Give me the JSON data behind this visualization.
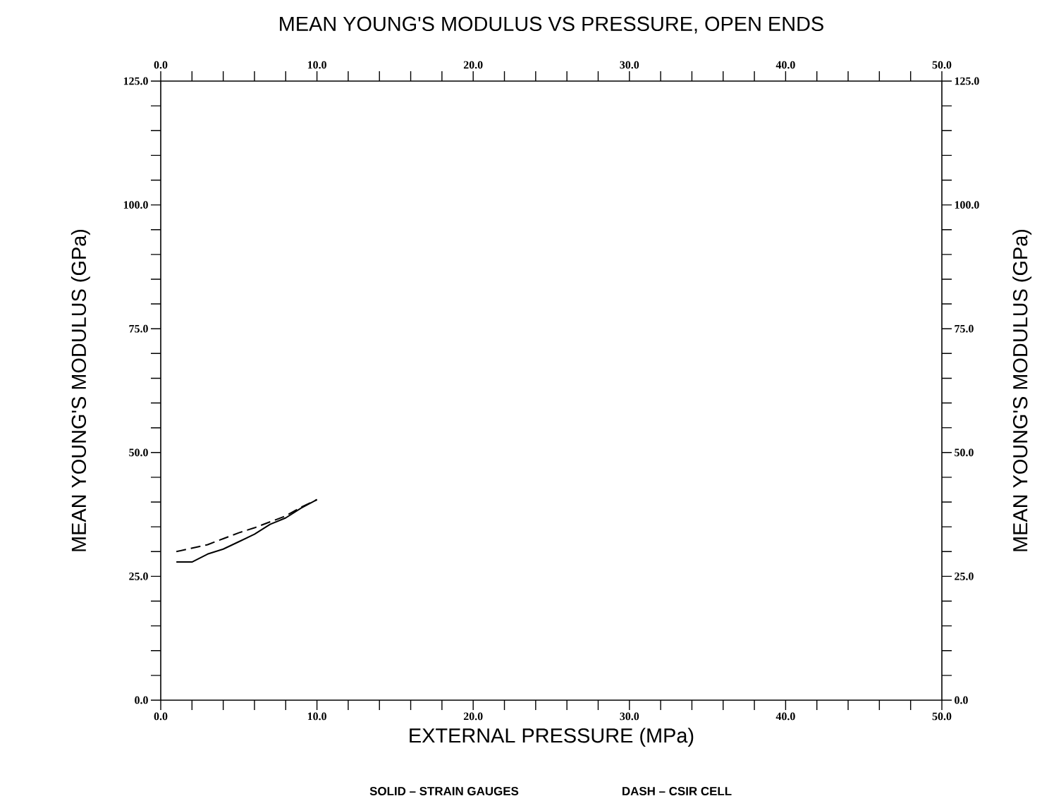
{
  "chart_data": {
    "type": "line",
    "title": "MEAN YOUNG'S MODULUS VS PRESSURE, OPEN ENDS",
    "xlabel": "EXTERNAL PRESSURE (MPa)",
    "ylabel": "MEAN YOUNG'S MODULUS (GPa)",
    "y2label": "MEAN YOUNG'S MODULUS (GPa)",
    "annotations": [
      "SOLID – STRAIN GAUGES",
      "DASH – CSIR CELL"
    ],
    "x": [
      1,
      2,
      3,
      4,
      5,
      6,
      7,
      8,
      9,
      10
    ],
    "series": [
      {
        "color": "#000000",
        "line_style": "solid",
        "values": [
          27.9,
          27.9,
          29.5,
          30.5,
          32.0,
          33.5,
          35.5,
          36.8,
          38.8,
          40.5
        ]
      },
      {
        "color": "#000000",
        "line_style": "dashed",
        "values": [
          30.0,
          30.7,
          31.4,
          32.6,
          33.8,
          34.8,
          36.0,
          37.2,
          39.0,
          40.5
        ]
      }
    ],
    "marker": "none",
    "xlim": [
      0,
      50
    ],
    "ylim": [
      0,
      125
    ],
    "x2lim": [
      0,
      50
    ],
    "y2lim": [
      0,
      125
    ],
    "xticks": [
      {
        "value": 0,
        "label": "0.0"
      },
      {
        "value": 2,
        "label": null
      },
      {
        "value": 4,
        "label": null
      },
      {
        "value": 6,
        "label": null
      },
      {
        "value": 8,
        "label": null
      },
      {
        "value": 10,
        "label": "10.0"
      },
      {
        "value": 12,
        "label": null
      },
      {
        "value": 14,
        "label": null
      },
      {
        "value": 16,
        "label": null
      },
      {
        "value": 18,
        "label": null
      },
      {
        "value": 20,
        "label": "20.0"
      },
      {
        "value": 22,
        "label": null
      },
      {
        "value": 24,
        "label": null
      },
      {
        "value": 26,
        "label": null
      },
      {
        "value": 28,
        "label": null
      },
      {
        "value": 30,
        "label": "30.0"
      },
      {
        "value": 32,
        "label": null
      },
      {
        "value": 34,
        "label": null
      },
      {
        "value": 36,
        "label": null
      },
      {
        "value": 38,
        "label": null
      },
      {
        "value": 40,
        "label": "40.0"
      },
      {
        "value": 42,
        "label": null
      },
      {
        "value": 44,
        "label": null
      },
      {
        "value": 46,
        "label": null
      },
      {
        "value": 48,
        "label": null
      },
      {
        "value": 50,
        "label": "50.0"
      }
    ],
    "x2ticks": [
      {
        "value": 0,
        "label": "0.0"
      },
      {
        "value": 2,
        "label": null
      },
      {
        "value": 4,
        "label": null
      },
      {
        "value": 6,
        "label": null
      },
      {
        "value": 8,
        "label": null
      },
      {
        "value": 10,
        "label": "10.0"
      },
      {
        "value": 12,
        "label": null
      },
      {
        "value": 14,
        "label": null
      },
      {
        "value": 16,
        "label": null
      },
      {
        "value": 18,
        "label": null
      },
      {
        "value": 20,
        "label": "20.0"
      },
      {
        "value": 22,
        "label": null
      },
      {
        "value": 24,
        "label": null
      },
      {
        "value": 26,
        "label": null
      },
      {
        "value": 28,
        "label": null
      },
      {
        "value": 30,
        "label": "30.0"
      },
      {
        "value": 32,
        "label": null
      },
      {
        "value": 34,
        "label": null
      },
      {
        "value": 36,
        "label": null
      },
      {
        "value": 38,
        "label": null
      },
      {
        "value": 40,
        "label": "40.0"
      },
      {
        "value": 42,
        "label": null
      },
      {
        "value": 44,
        "label": null
      },
      {
        "value": 46,
        "label": null
      },
      {
        "value": 48,
        "label": null
      },
      {
        "value": 50,
        "label": "50.0"
      }
    ],
    "yticks": [
      {
        "value": 0,
        "label": "0.0"
      },
      {
        "value": 5,
        "label": null
      },
      {
        "value": 10,
        "label": null
      },
      {
        "value": 15,
        "label": null
      },
      {
        "value": 20,
        "label": null
      },
      {
        "value": 25,
        "label": "25.0"
      },
      {
        "value": 30,
        "label": null
      },
      {
        "value": 35,
        "label": null
      },
      {
        "value": 40,
        "label": null
      },
      {
        "value": 45,
        "label": null
      },
      {
        "value": 50,
        "label": "50.0"
      },
      {
        "value": 55,
        "label": null
      },
      {
        "value": 60,
        "label": null
      },
      {
        "value": 65,
        "label": null
      },
      {
        "value": 70,
        "label": null
      },
      {
        "value": 75,
        "label": "75.0"
      },
      {
        "value": 80,
        "label": null
      },
      {
        "value": 85,
        "label": null
      },
      {
        "value": 90,
        "label": null
      },
      {
        "value": 95,
        "label": null
      },
      {
        "value": 100,
        "label": "100.0"
      },
      {
        "value": 105,
        "label": null
      },
      {
        "value": 110,
        "label": null
      },
      {
        "value": 115,
        "label": null
      },
      {
        "value": 120,
        "label": null
      },
      {
        "value": 125,
        "label": "125.0"
      }
    ],
    "y2ticks": [
      {
        "value": 0,
        "label": "0.0"
      },
      {
        "value": 5,
        "label": null
      },
      {
        "value": 10,
        "label": null
      },
      {
        "value": 15,
        "label": null
      },
      {
        "value": 20,
        "label": null
      },
      {
        "value": 25,
        "label": "25.0"
      },
      {
        "value": 30,
        "label": null
      },
      {
        "value": 35,
        "label": null
      },
      {
        "value": 40,
        "label": null
      },
      {
        "value": 45,
        "label": null
      },
      {
        "value": 50,
        "label": "50.0"
      },
      {
        "value": 55,
        "label": null
      },
      {
        "value": 60,
        "label": null
      },
      {
        "value": 65,
        "label": null
      },
      {
        "value": 70,
        "label": null
      },
      {
        "value": 75,
        "label": "75.0"
      },
      {
        "value": 80,
        "label": null
      },
      {
        "value": 85,
        "label": null
      },
      {
        "value": 90,
        "label": null
      },
      {
        "value": 95,
        "label": null
      },
      {
        "value": 100,
        "label": "100.0"
      },
      {
        "value": 105,
        "label": null
      },
      {
        "value": 110,
        "label": null
      },
      {
        "value": 115,
        "label": null
      },
      {
        "value": 120,
        "label": null
      },
      {
        "value": 125,
        "label": "125.0"
      }
    ]
  }
}
